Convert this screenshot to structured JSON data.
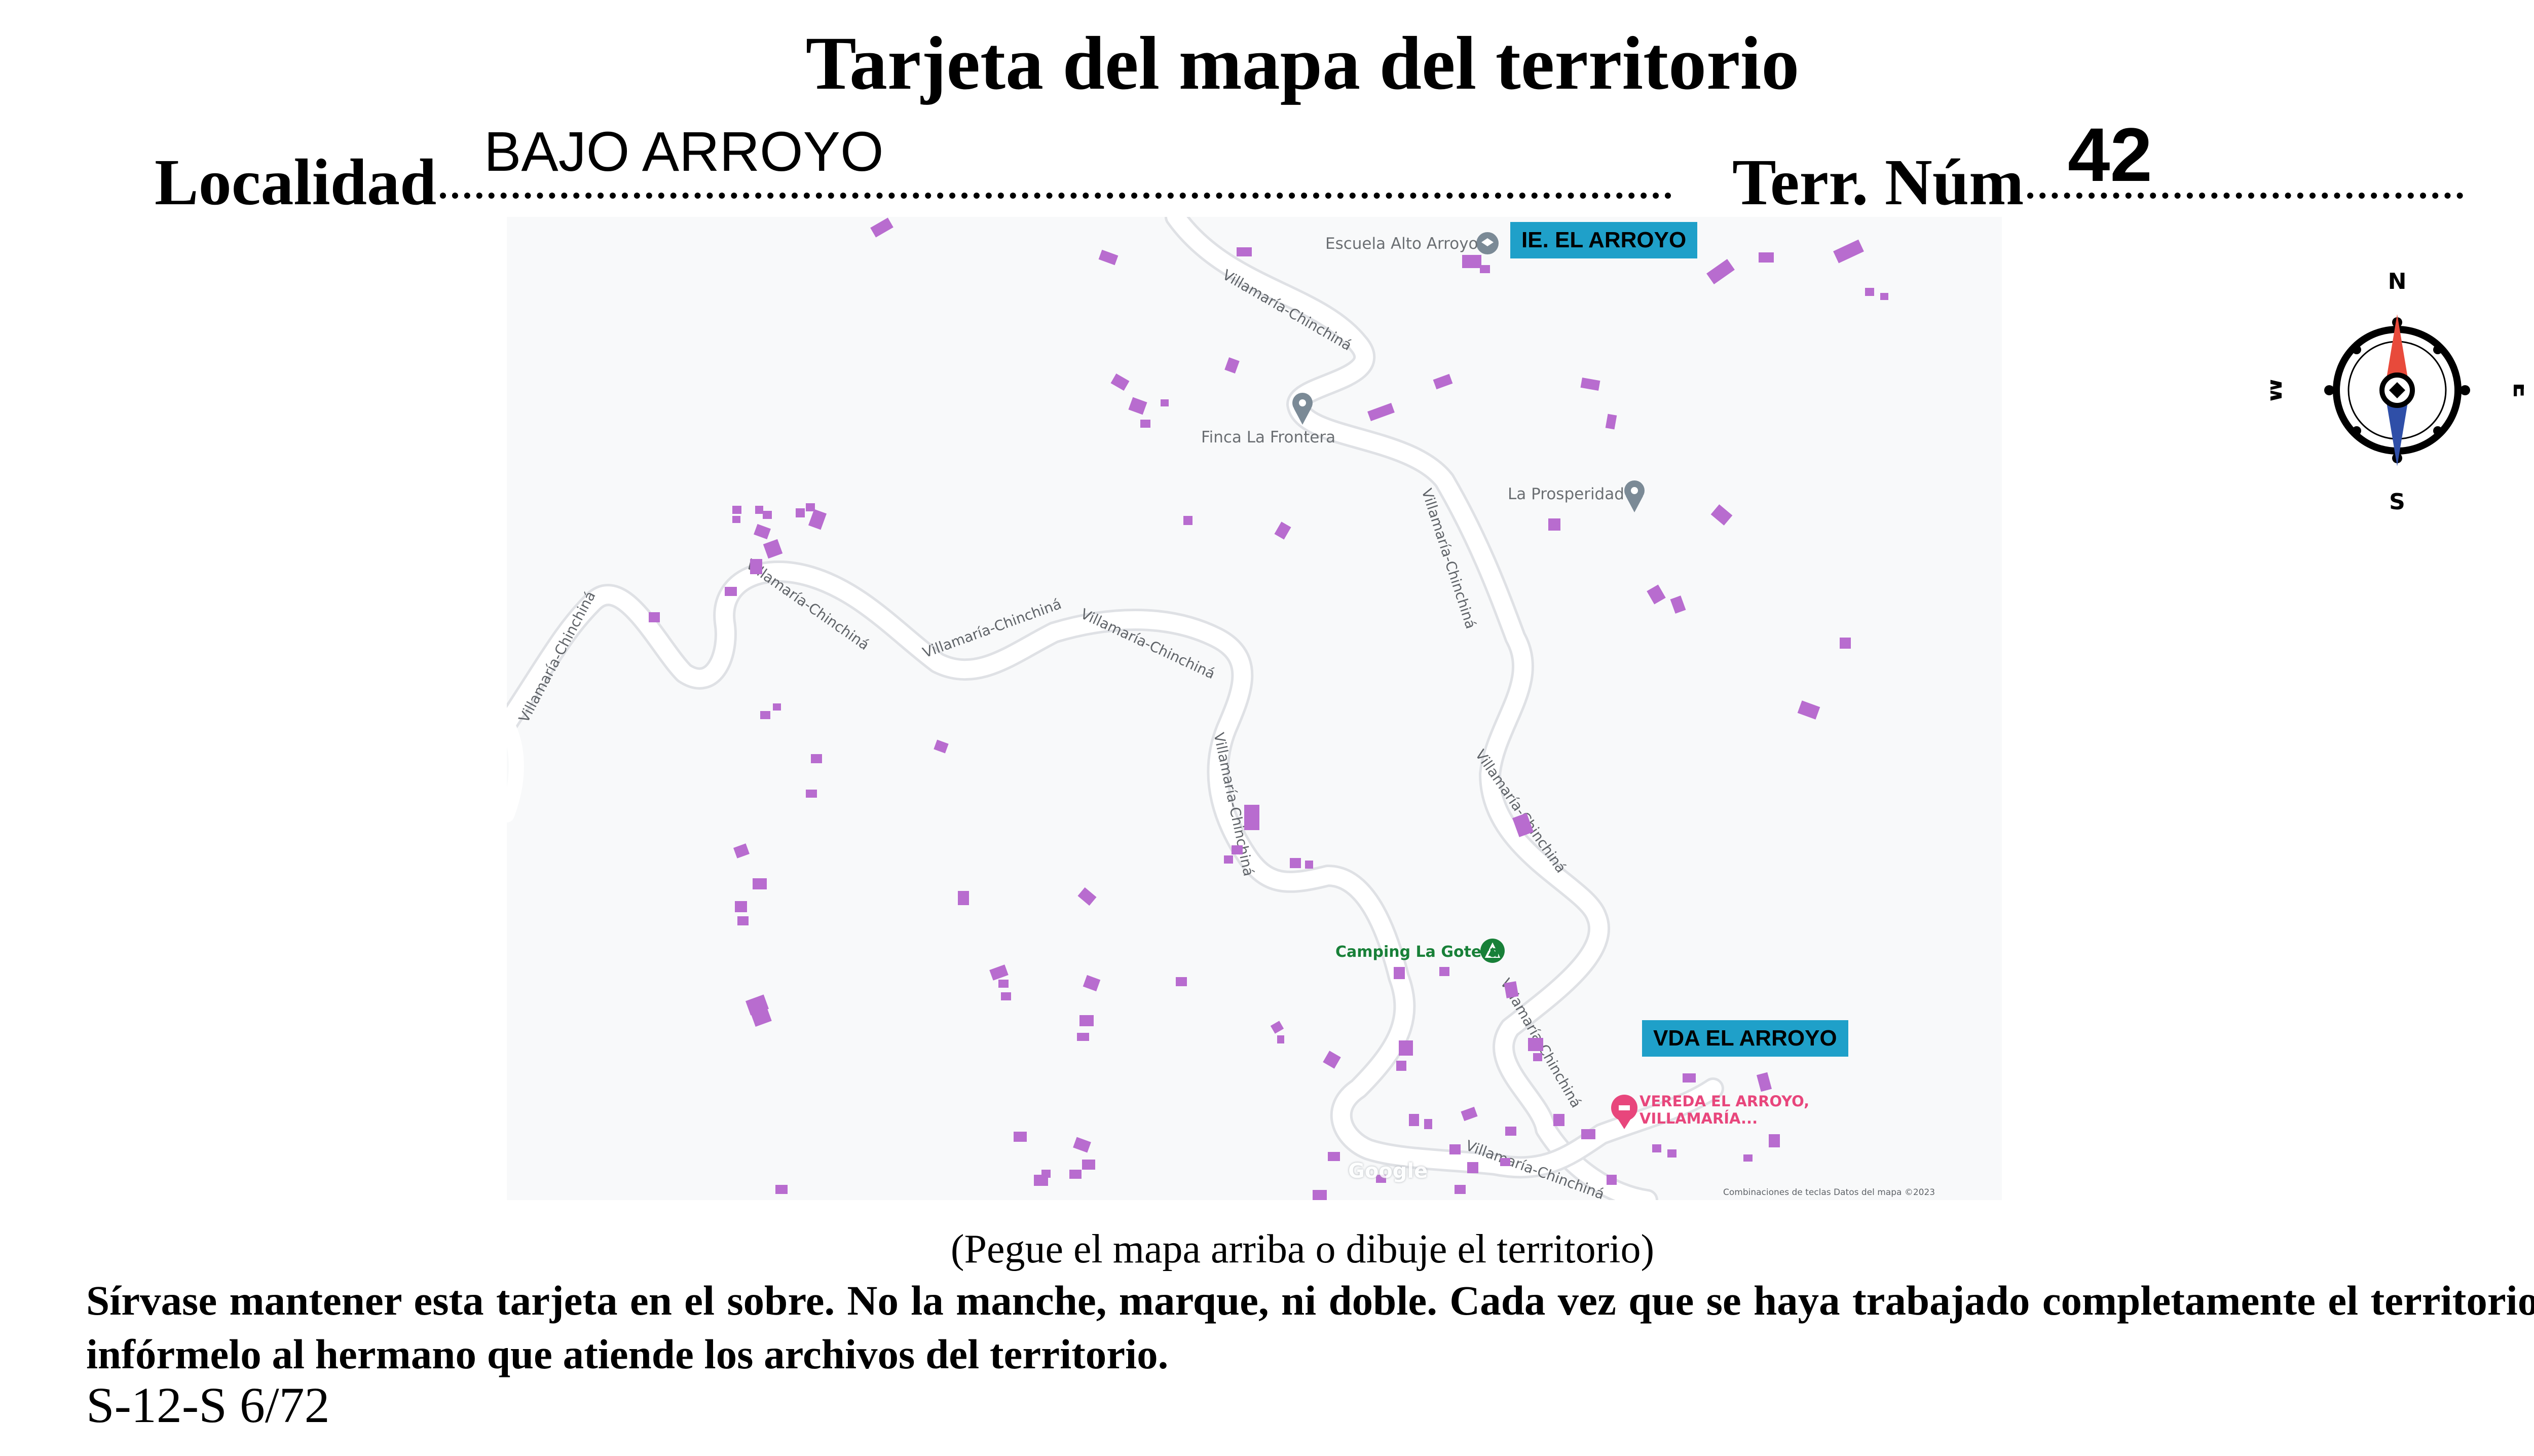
{
  "card": {
    "title": "Tarjeta del mapa del territorio",
    "locality_label": "Localidad",
    "locality_value": "BAJO ARROYO",
    "territory_label": "Terr. Núm",
    "territory_value": "42",
    "caption": "(Pegue el mapa arriba o dibuje el territorio)",
    "instructions": "Sírvase mantener esta tarjeta en el sobre. No la manche, marque, ni doble. Cada vez que se haya trabajado completamente el territorio, infórmelo al hermano que atiende los archivos del territorio.",
    "form_code": "S-12-S 6/72"
  },
  "compass": {
    "north": "N",
    "south": "S",
    "east": "E",
    "west": "W",
    "north_color": "#e84a3b",
    "south_color": "#2f4fa8"
  },
  "map": {
    "road_name": "Villamaría-Chinchiná",
    "places": {
      "school": "Escuela Alto Arroyo",
      "finca": "Finca La Frontera",
      "prosperidad": "La Prosperidad",
      "camping": "Camping La Gotera",
      "vereda_line1": "VEREDA EL ARROYO,",
      "vereda_line2": "VILLAMARÍA..."
    },
    "tags": {
      "school_tag": "IE. EL ARROYO",
      "vereda_tag": "VDA EL ARROYO"
    },
    "google": "Google",
    "attribution": "Combinaciones de teclas    Datos del mapa ©2023",
    "colors": {
      "building": "#b86ccf",
      "road_fill": "#ffffff",
      "road_casing": "#dfe1e5",
      "tag_bg": "#1fa0c9",
      "camping": "#188038",
      "vereda": "#e8467c",
      "pin_gray": "#7b8a96"
    }
  }
}
